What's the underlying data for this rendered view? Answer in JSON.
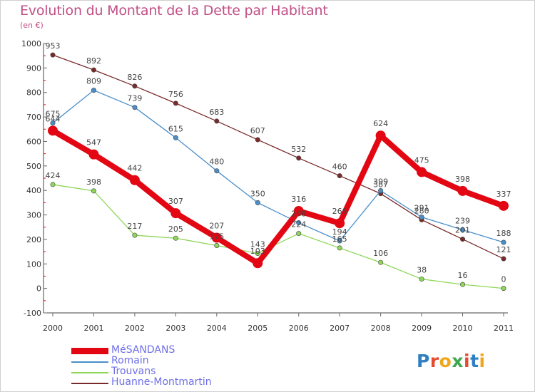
{
  "title": "Evolution du Montant de la Dette par Habitant",
  "unit": "(en €)",
  "logo": {
    "letters": [
      "P",
      "r",
      "o",
      "x",
      "i",
      "t",
      "i"
    ],
    "colors": [
      "#2f7fc1",
      "#e44c32",
      "#f2a71b",
      "#3fa64b",
      "#e44c32",
      "#2f7fc1",
      "#f2a71b"
    ]
  },
  "chart_data": {
    "type": "line",
    "title": "Evolution du Montant de la Dette par Habitant",
    "ylabel": "(en €)",
    "xlabel": "",
    "x": [
      "2000",
      "2001",
      "2002",
      "2003",
      "2004",
      "2005",
      "2006",
      "2007",
      "2008",
      "2009",
      "2010",
      "2011"
    ],
    "ylim": [
      -100,
      1000
    ],
    "yticks": [
      "-100",
      "0",
      "100",
      "200",
      "300",
      "400",
      "500",
      "600",
      "700",
      "800",
      "900",
      "1000"
    ],
    "grid": false,
    "legend_position": "bottom-left",
    "series": [
      {
        "name": "MéSANDANS",
        "color": "#e30613",
        "values": [
          644,
          547,
          442,
          307,
          207,
          103,
          316,
          266,
          624,
          475,
          398,
          337
        ]
      },
      {
        "name": "Romain",
        "color": "#4a8fc9",
        "values": [
          675,
          809,
          739,
          615,
          480,
          350,
          268,
          194,
          399,
          291,
          239,
          188
        ]
      },
      {
        "name": "Trouvans",
        "color": "#8fd65a",
        "values": [
          424,
          398,
          217,
          205,
          175,
          143,
          224,
          165,
          106,
          38,
          16,
          0
        ]
      },
      {
        "name": "Huanne-Montmartin",
        "color": "#7a2a2a",
        "values": [
          953,
          892,
          826,
          756,
          683,
          607,
          532,
          460,
          387,
          280,
          201,
          121
        ]
      }
    ]
  }
}
